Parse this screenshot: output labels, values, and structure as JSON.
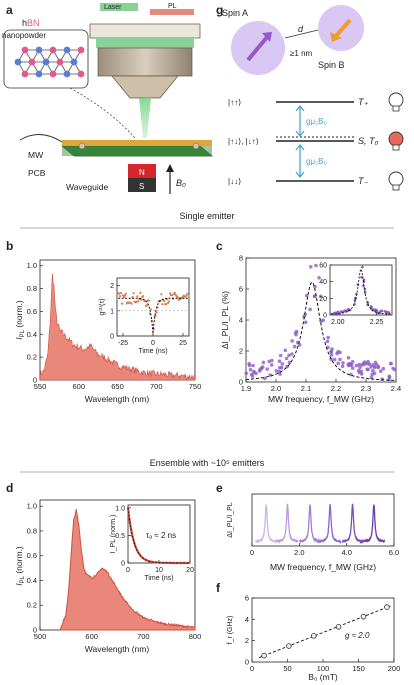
{
  "panel_labels": {
    "a": "a",
    "g": "g",
    "b": "b",
    "c": "c",
    "d": "d",
    "e": "e",
    "f": "f"
  },
  "section_titles": {
    "single": "Single emitter",
    "ensemble": "Ensemble with ~10⁵ emitters"
  },
  "panel_a": {
    "laser": "Laser",
    "pl": "PL",
    "hbn_h": "h",
    "hbn_bn": "BN",
    "nanopowder": "nanopowder",
    "mw": "MW",
    "pcb": "PCB",
    "waveguide": "Waveguide",
    "magnet_n": "N",
    "magnet_s": "S",
    "field": "B₀"
  },
  "panel_g": {
    "spin_a": "Spin A",
    "spin_b": "Spin B",
    "d": "d",
    "dist": "≥1 nm",
    "levels": [
      {
        "state": "|↑↑⟩",
        "label": "T₊"
      },
      {
        "state": "|↑↓⟩, |↓↑⟩",
        "label": "S, T₀"
      },
      {
        "state": "|↓↓⟩",
        "label": "T₋"
      }
    ],
    "transition": "gμ₂B₀",
    "bulb_colors": [
      "#ffffff",
      "#e8695a",
      "#ffffff"
    ]
  },
  "colors": {
    "pl_fill": "#e9877b",
    "pl_line": "#d0503f",
    "scatter": "#8b5cc5",
    "scatter_light": "#b69be0",
    "g2": "#e07a48"
  },
  "chart_data": [
    {
      "id": "b",
      "type": "area",
      "xlabel": "Wavelength (nm)",
      "ylabel": "I_PL",
      "xlim": [
        550,
        750
      ],
      "ylim": [
        0,
        1.05
      ],
      "xticks": [
        "550",
        "600",
        "650",
        "700",
        "750"
      ],
      "yticks": [
        "0",
        "0.2",
        "0.4",
        "0.6",
        "0.8",
        "1.0"
      ],
      "x": [
        550,
        555,
        560,
        563,
        566,
        568,
        570,
        573,
        576,
        580,
        585,
        590,
        595,
        600,
        605,
        610,
        615,
        620,
        625,
        630,
        640,
        650,
        660,
        670,
        680,
        690,
        700,
        710,
        720,
        730,
        740,
        750
      ],
      "y": [
        0.05,
        0.08,
        0.22,
        0.5,
        0.92,
        0.82,
        0.6,
        0.48,
        0.43,
        0.4,
        0.37,
        0.33,
        0.3,
        0.29,
        0.27,
        0.28,
        0.3,
        0.26,
        0.22,
        0.21,
        0.17,
        0.13,
        0.11,
        0.09,
        0.07,
        0.06,
        0.05,
        0.05,
        0.04,
        0.04,
        0.03,
        0.03
      ],
      "inset": {
        "type": "scatter",
        "ylabel": "g⁽²⁾(τ)",
        "xlabel": "Time (ns)",
        "xticks": [
          "-25",
          "0",
          "25"
        ],
        "yticks": [
          "0",
          "1",
          "2"
        ],
        "xlim": [
          -30,
          30
        ],
        "ylim": [
          0,
          2.3
        ]
      }
    },
    {
      "id": "c",
      "type": "scatter",
      "xlabel": "MW frequency, f_MW (GHz)",
      "ylabel": "ΔI_PL/I_PL (%)",
      "xlim": [
        1.9,
        2.4
      ],
      "ylim": [
        0,
        8
      ],
      "xticks": [
        "1.9",
        "2.0",
        "2.1",
        "2.2",
        "2.3",
        "2.4"
      ],
      "yticks": [
        "0",
        "2",
        "4",
        "6",
        "8"
      ],
      "fit": {
        "center": 2.12,
        "width": 0.035,
        "amp": 2.3,
        "offset": 0
      },
      "inset": {
        "xticks": [
          "2.00",
          "2.25"
        ],
        "yticks": [
          "0",
          "20",
          "40",
          "60"
        ],
        "xlim": [
          1.95,
          2.35
        ],
        "ylim": [
          0,
          60
        ]
      }
    },
    {
      "id": "d",
      "type": "area",
      "xlabel": "Wavelength (nm)",
      "ylabel": "I_PL",
      "xlim": [
        500,
        800
      ],
      "ylim": [
        0,
        1.05
      ],
      "xticks": [
        "500",
        "600",
        "700",
        "800"
      ],
      "yticks": [
        "0",
        "0.2",
        "0.4",
        "0.6",
        "0.8",
        "1.0"
      ],
      "x": [
        540,
        550,
        555,
        560,
        565,
        570,
        575,
        580,
        585,
        590,
        600,
        610,
        620,
        630,
        640,
        650,
        660,
        680,
        700,
        720,
        740,
        760,
        780,
        800
      ],
      "y": [
        0.02,
        0.12,
        0.3,
        0.6,
        0.88,
        0.97,
        0.85,
        0.65,
        0.5,
        0.45,
        0.42,
        0.45,
        0.5,
        0.47,
        0.4,
        0.33,
        0.26,
        0.16,
        0.1,
        0.07,
        0.05,
        0.04,
        0.03,
        0.02
      ],
      "inset": {
        "ylabel": "I_PL (norm.)",
        "xlabel": "Time (ns)",
        "xticks": [
          "0",
          "10",
          "20"
        ],
        "yticks": [
          "0",
          "0.5",
          "1.0"
        ],
        "tau_label": "τₐ ≈ 2 ns",
        "tau": 2.0
      }
    },
    {
      "id": "e",
      "type": "line",
      "xlabel": "MW frequency, f_MW (GHz)",
      "ylabel": "ΔI_PL/I_PL",
      "xlim": [
        0,
        6
      ],
      "xticks": [
        "0",
        "2.0",
        "4.0",
        "6.0"
      ],
      "peaks": [
        0.6,
        1.5,
        2.45,
        3.3,
        4.25,
        5.15
      ]
    },
    {
      "id": "f",
      "type": "scatter",
      "xlabel": "B₀ (mT)",
      "ylabel": "f_r (GHz)",
      "xlim": [
        0,
        200
      ],
      "ylim": [
        0,
        6
      ],
      "xticks": [
        "0",
        "50",
        "100",
        "150",
        "200"
      ],
      "yticks": [
        "0",
        "2",
        "4",
        "6"
      ],
      "x": [
        17,
        52,
        87,
        122,
        157,
        190
      ],
      "y": [
        0.6,
        1.5,
        2.45,
        3.3,
        4.25,
        5.15
      ],
      "fit_label": "g ≈ 2.0"
    }
  ]
}
